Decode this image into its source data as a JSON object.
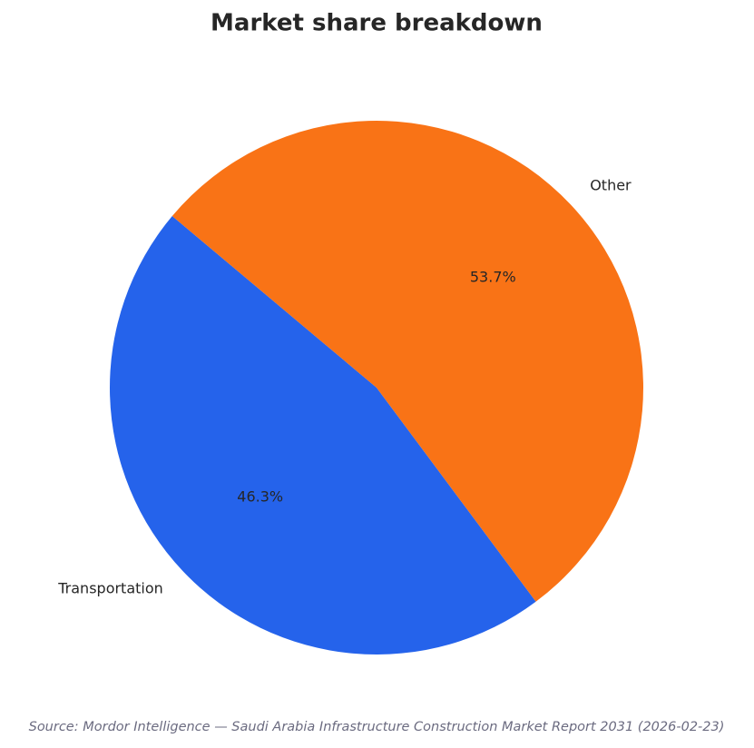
{
  "chart_data": {
    "type": "pie",
    "title": "Market share breakdown",
    "categories": [
      "Transportation",
      "Other"
    ],
    "values": [
      46.3,
      53.7
    ],
    "value_labels": [
      "46.3%",
      "53.7%"
    ],
    "colors": [
      "#2563eb",
      "#f97316"
    ],
    "start_angle": 140,
    "source": "Source: Mordor Intelligence — Saudi Arabia Infrastructure Construction Market Report 2031 (2026-02-23)"
  }
}
